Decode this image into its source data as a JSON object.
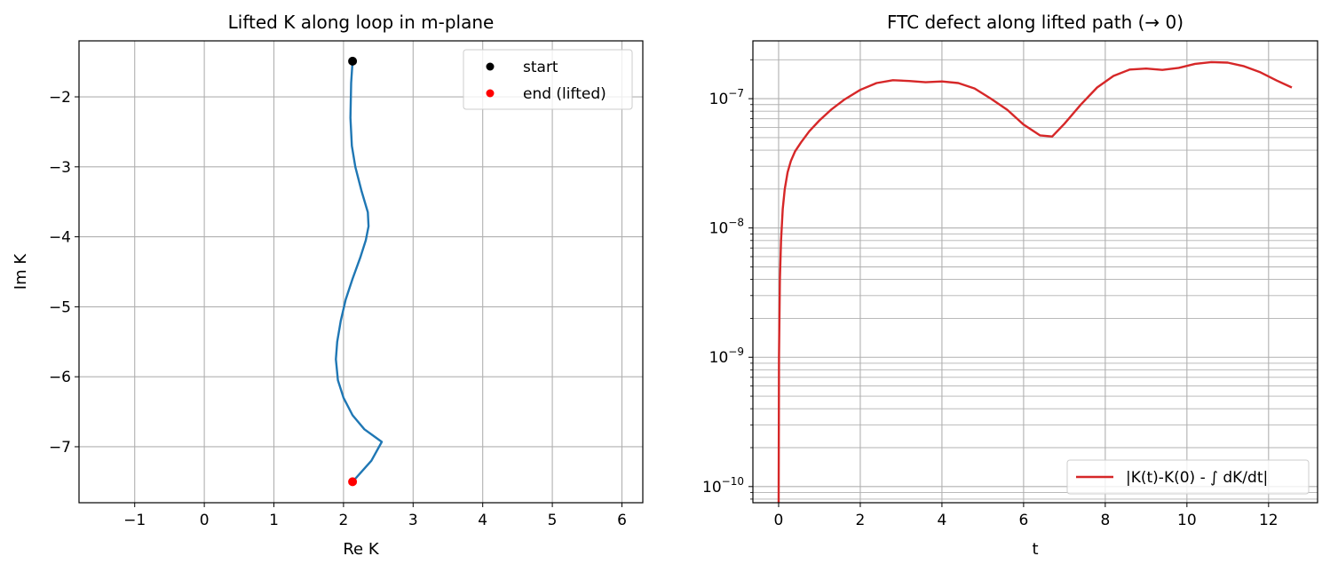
{
  "chart_data": [
    {
      "type": "line",
      "title": "Lifted K along loop in m-plane",
      "xlabel": "Re K",
      "ylabel": "Im K",
      "xlim": [
        -1.8,
        6.3
      ],
      "ylim": [
        -7.8,
        -1.2
      ],
      "xticks": [
        -1,
        0,
        1,
        2,
        3,
        4,
        5,
        6
      ],
      "xtick_labels": [
        "−1",
        "0",
        "1",
        "2",
        "3",
        "4",
        "5",
        "6"
      ],
      "yticks": [
        -2,
        -3,
        -4,
        -5,
        -6,
        -7
      ],
      "ytick_labels": [
        "−2",
        "−3",
        "−4",
        "−5",
        "−6",
        "−7"
      ],
      "grid": true,
      "legend_position": "top-right",
      "series": [
        {
          "color": "#1f77b4",
          "x": [
            2.13,
            2.11,
            2.1,
            2.12,
            2.17,
            2.26,
            2.35,
            2.36,
            2.32,
            2.24,
            2.13,
            2.03,
            1.96,
            1.91,
            1.89,
            1.92,
            2.0,
            2.13,
            2.3,
            2.48,
            2.55,
            2.4,
            2.13
          ],
          "y": [
            -1.49,
            -1.8,
            -2.3,
            -2.7,
            -3.0,
            -3.35,
            -3.65,
            -3.85,
            -4.05,
            -4.3,
            -4.6,
            -4.9,
            -5.2,
            -5.5,
            -5.75,
            -6.05,
            -6.3,
            -6.55,
            -6.75,
            -6.88,
            -6.93,
            -7.2,
            -7.5
          ]
        }
      ],
      "markers": [
        {
          "label": "start",
          "x": 2.13,
          "y": -1.49,
          "color": "#000000"
        },
        {
          "label": "end (lifted)",
          "x": 2.13,
          "y": -7.5,
          "color": "#ff0000"
        }
      ]
    },
    {
      "type": "line",
      "title": "FTC defect along lifted path (→ 0)",
      "xlabel": "t",
      "ylabel": "",
      "yscale": "log",
      "xlim": [
        -0.63,
        13.2
      ],
      "ylim": [
        7.5e-11,
        2.8e-07
      ],
      "xticks": [
        0,
        2,
        4,
        6,
        8,
        10,
        12
      ],
      "xtick_labels": [
        "0",
        "2",
        "4",
        "6",
        "8",
        "10",
        "12"
      ],
      "ytick_labels": [
        {
          "value": 1e-10,
          "base": "10",
          "exp": "−10"
        },
        {
          "value": 1e-09,
          "base": "10",
          "exp": "−9"
        },
        {
          "value": 1e-08,
          "base": "10",
          "exp": "−8"
        },
        {
          "value": 1e-07,
          "base": "10",
          "exp": "−7"
        }
      ],
      "grid": true,
      "grid_minor_y": true,
      "legend_position": "bottom-right",
      "series": [
        {
          "name": "|K(t)-K(0) - ∫ dK/dt|",
          "color": "#d62728",
          "x": [
            0.0,
            0.01,
            0.03,
            0.06,
            0.1,
            0.15,
            0.22,
            0.3,
            0.4,
            0.55,
            0.75,
            1.0,
            1.3,
            1.6,
            2.0,
            2.4,
            2.8,
            3.2,
            3.6,
            4.0,
            4.4,
            4.8,
            5.2,
            5.6,
            6.0,
            6.4,
            6.7,
            7.0,
            7.4,
            7.8,
            8.2,
            8.6,
            9.0,
            9.4,
            9.8,
            10.2,
            10.6,
            11.0,
            11.4,
            11.8,
            12.2,
            12.57
          ],
          "y": [
            7.5e-11,
            1e-09,
            4e-09,
            8e-09,
            1.4e-08,
            2e-08,
            2.7e-08,
            3.3e-08,
            3.9e-08,
            4.6e-08,
            5.6e-08,
            6.8e-08,
            8.3e-08,
            9.8e-08,
            1.17e-07,
            1.32e-07,
            1.39e-07,
            1.37e-07,
            1.34e-07,
            1.36e-07,
            1.32e-07,
            1.2e-07,
            1e-07,
            8.2e-08,
            6.3e-08,
            5.2e-08,
            5.1e-08,
            6.4e-08,
            9e-08,
            1.22e-07,
            1.5e-07,
            1.68e-07,
            1.71e-07,
            1.67e-07,
            1.73e-07,
            1.86e-07,
            1.92e-07,
            1.9e-07,
            1.78e-07,
            1.6e-07,
            1.38e-07,
            1.22e-07
          ]
        }
      ]
    }
  ]
}
